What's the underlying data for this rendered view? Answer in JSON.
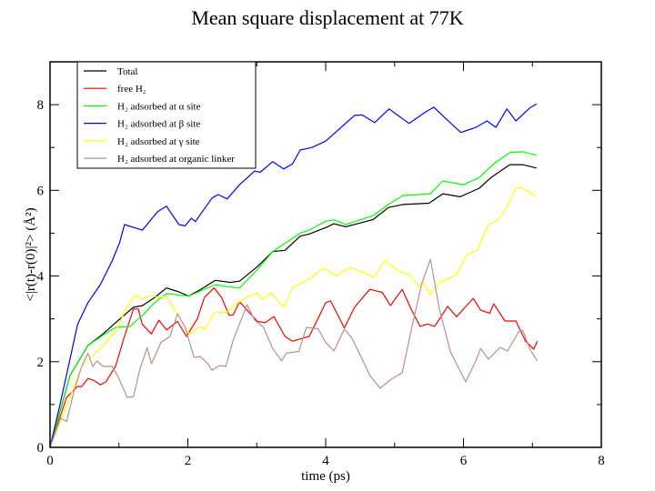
{
  "chart_data": {
    "type": "line",
    "title": "Mean square displacement at 77K",
    "xlabel": "time (ps)",
    "ylabel": "<|r(t)-r(0)|²> (Å²)",
    "xlim": [
      0,
      8
    ],
    "ylim": [
      0,
      9
    ],
    "xticks": [
      0,
      2,
      4,
      6,
      8
    ],
    "yticks": [
      0,
      2,
      4,
      6,
      8
    ],
    "xtick_labels": [
      "0",
      "2",
      "4",
      "6",
      "8"
    ],
    "ytick_labels": [
      "0",
      "2",
      "4",
      "6",
      "8"
    ],
    "grid": false,
    "legend_position": "top-left",
    "series": [
      {
        "name": "Total",
        "color": "#000000",
        "points": [
          [
            0,
            0
          ],
          [
            0.29,
            1.68
          ],
          [
            0.55,
            2.38
          ],
          [
            0.77,
            2.65
          ],
          [
            0.95,
            2.91
          ],
          [
            1.21,
            3.27
          ],
          [
            1.34,
            3.31
          ],
          [
            1.52,
            3.5
          ],
          [
            1.69,
            3.72
          ],
          [
            1.87,
            3.63
          ],
          [
            2.01,
            3.53
          ],
          [
            2.18,
            3.68
          ],
          [
            2.4,
            3.9
          ],
          [
            2.62,
            3.85
          ],
          [
            2.75,
            3.88
          ],
          [
            3.01,
            4.22
          ],
          [
            3.23,
            4.57
          ],
          [
            3.41,
            4.6
          ],
          [
            3.63,
            4.93
          ],
          [
            3.76,
            4.98
          ],
          [
            4.0,
            5.13
          ],
          [
            4.12,
            5.22
          ],
          [
            4.29,
            5.15
          ],
          [
            4.69,
            5.32
          ],
          [
            4.91,
            5.6
          ],
          [
            5.12,
            5.67
          ],
          [
            5.5,
            5.7
          ],
          [
            5.7,
            5.92
          ],
          [
            5.95,
            5.85
          ],
          [
            6.23,
            6.05
          ],
          [
            6.4,
            6.3
          ],
          [
            6.67,
            6.6
          ],
          [
            6.86,
            6.6
          ],
          [
            7.06,
            6.52
          ]
        ]
      },
      {
        "name": "free H₂",
        "color": "#ff0000",
        "points": [
          [
            0,
            0
          ],
          [
            0.24,
            1.17
          ],
          [
            0.4,
            1.42
          ],
          [
            0.46,
            1.42
          ],
          [
            0.55,
            1.61
          ],
          [
            0.64,
            1.56
          ],
          [
            0.73,
            1.46
          ],
          [
            0.81,
            1.53
          ],
          [
            0.95,
            1.89
          ],
          [
            1.08,
            2.59
          ],
          [
            1.21,
            3.23
          ],
          [
            1.28,
            3.23
          ],
          [
            1.34,
            2.87
          ],
          [
            1.47,
            2.65
          ],
          [
            1.58,
            2.97
          ],
          [
            1.69,
            2.74
          ],
          [
            1.85,
            2.94
          ],
          [
            1.98,
            2.59
          ],
          [
            2.14,
            3.01
          ],
          [
            2.24,
            3.5
          ],
          [
            2.38,
            3.72
          ],
          [
            2.49,
            3.5
          ],
          [
            2.6,
            3.08
          ],
          [
            2.66,
            3.1
          ],
          [
            2.75,
            3.4
          ],
          [
            2.88,
            3.17
          ],
          [
            3.01,
            2.94
          ],
          [
            3.12,
            2.91
          ],
          [
            3.25,
            3.05
          ],
          [
            3.41,
            2.59
          ],
          [
            3.52,
            2.48
          ],
          [
            3.67,
            2.55
          ],
          [
            3.76,
            2.59
          ],
          [
            3.89,
            3.01
          ],
          [
            4.0,
            3.38
          ],
          [
            4.07,
            3.42
          ],
          [
            4.18,
            3.08
          ],
          [
            4.27,
            2.79
          ],
          [
            4.42,
            3.27
          ],
          [
            4.64,
            3.69
          ],
          [
            4.82,
            3.62
          ],
          [
            4.94,
            3.31
          ],
          [
            5.11,
            3.69
          ],
          [
            5.24,
            3.23
          ],
          [
            5.37,
            2.82
          ],
          [
            5.48,
            2.88
          ],
          [
            5.58,
            2.82
          ],
          [
            5.77,
            3.29
          ],
          [
            5.9,
            3.05
          ],
          [
            6.14,
            3.48
          ],
          [
            6.25,
            3.2
          ],
          [
            6.38,
            3.13
          ],
          [
            6.44,
            3.35
          ],
          [
            6.6,
            2.95
          ],
          [
            6.76,
            2.95
          ],
          [
            6.9,
            2.48
          ],
          [
            7.02,
            2.29
          ],
          [
            7.07,
            2.48
          ]
        ]
      },
      {
        "name": "H₂ adsorbed at α site",
        "color": "#00ff00",
        "points": [
          [
            0,
            0
          ],
          [
            0.29,
            1.68
          ],
          [
            0.55,
            2.38
          ],
          [
            0.77,
            2.62
          ],
          [
            0.95,
            2.8
          ],
          [
            1.16,
            2.82
          ],
          [
            1.34,
            3.08
          ],
          [
            1.52,
            3.38
          ],
          [
            1.69,
            3.59
          ],
          [
            2.01,
            3.53
          ],
          [
            2.4,
            3.8
          ],
          [
            2.57,
            3.75
          ],
          [
            2.75,
            3.72
          ],
          [
            3.01,
            4.15
          ],
          [
            3.23,
            4.57
          ],
          [
            3.63,
            5.0
          ],
          [
            3.76,
            5.07
          ],
          [
            4.0,
            5.28
          ],
          [
            4.12,
            5.31
          ],
          [
            4.29,
            5.2
          ],
          [
            4.69,
            5.41
          ],
          [
            4.91,
            5.67
          ],
          [
            5.12,
            5.88
          ],
          [
            5.52,
            5.92
          ],
          [
            5.7,
            6.22
          ],
          [
            6.0,
            6.13
          ],
          [
            6.23,
            6.3
          ],
          [
            6.44,
            6.62
          ],
          [
            6.67,
            6.88
          ],
          [
            6.86,
            6.9
          ],
          [
            7.06,
            6.82
          ]
        ]
      },
      {
        "name": "H₂ adsorbed at β site",
        "color": "#0000ff",
        "points": [
          [
            0,
            0
          ],
          [
            0.15,
            1.04
          ],
          [
            0.4,
            2.87
          ],
          [
            0.55,
            3.38
          ],
          [
            0.73,
            3.8
          ],
          [
            0.9,
            4.35
          ],
          [
            1.01,
            4.78
          ],
          [
            1.08,
            5.2
          ],
          [
            1.34,
            5.07
          ],
          [
            1.56,
            5.5
          ],
          [
            1.69,
            5.63
          ],
          [
            1.87,
            5.2
          ],
          [
            1.96,
            5.17
          ],
          [
            2.05,
            5.35
          ],
          [
            2.11,
            5.27
          ],
          [
            2.35,
            5.82
          ],
          [
            2.44,
            5.9
          ],
          [
            2.57,
            5.8
          ],
          [
            2.75,
            6.13
          ],
          [
            2.97,
            6.45
          ],
          [
            3.05,
            6.42
          ],
          [
            3.23,
            6.67
          ],
          [
            3.39,
            6.5
          ],
          [
            3.52,
            6.62
          ],
          [
            3.63,
            6.94
          ],
          [
            3.8,
            7.0
          ],
          [
            4.0,
            7.15
          ],
          [
            4.42,
            7.75
          ],
          [
            4.53,
            7.76
          ],
          [
            4.71,
            7.58
          ],
          [
            4.92,
            7.9
          ],
          [
            5.21,
            7.56
          ],
          [
            5.45,
            7.83
          ],
          [
            5.57,
            7.94
          ],
          [
            5.78,
            7.62
          ],
          [
            5.96,
            7.35
          ],
          [
            6.18,
            7.47
          ],
          [
            6.34,
            7.62
          ],
          [
            6.47,
            7.47
          ],
          [
            6.63,
            7.9
          ],
          [
            6.76,
            7.62
          ],
          [
            6.96,
            7.92
          ],
          [
            7.06,
            8.02
          ]
        ]
      },
      {
        "name": "H₂ adsorbed at γ site",
        "color": "#ffff00",
        "points": [
          [
            0,
            0
          ],
          [
            0.29,
            1.17
          ],
          [
            0.46,
            1.89
          ],
          [
            0.73,
            2.31
          ],
          [
            0.95,
            2.7
          ],
          [
            1.12,
            3.29
          ],
          [
            1.23,
            3.55
          ],
          [
            1.34,
            3.47
          ],
          [
            1.47,
            3.55
          ],
          [
            1.56,
            3.5
          ],
          [
            1.69,
            3.53
          ],
          [
            1.91,
            2.94
          ],
          [
            2.02,
            2.65
          ],
          [
            2.18,
            2.82
          ],
          [
            2.24,
            2.75
          ],
          [
            2.4,
            3.17
          ],
          [
            2.55,
            3.13
          ],
          [
            2.7,
            3.35
          ],
          [
            2.88,
            3.53
          ],
          [
            3.01,
            3.59
          ],
          [
            3.08,
            3.45
          ],
          [
            3.21,
            3.6
          ],
          [
            3.39,
            3.27
          ],
          [
            3.52,
            3.72
          ],
          [
            3.76,
            3.93
          ],
          [
            3.96,
            4.18
          ],
          [
            4.16,
            4.01
          ],
          [
            4.36,
            4.2
          ],
          [
            4.55,
            4.08
          ],
          [
            4.7,
            3.97
          ],
          [
            4.86,
            4.36
          ],
          [
            5.08,
            4.09
          ],
          [
            5.21,
            4.05
          ],
          [
            5.35,
            3.76
          ],
          [
            5.42,
            3.83
          ],
          [
            5.52,
            3.56
          ],
          [
            5.65,
            3.86
          ],
          [
            5.78,
            3.93
          ],
          [
            5.91,
            4.05
          ],
          [
            6.05,
            4.5
          ],
          [
            6.2,
            4.6
          ],
          [
            6.36,
            5.2
          ],
          [
            6.49,
            5.29
          ],
          [
            6.63,
            5.6
          ],
          [
            6.76,
            6.05
          ],
          [
            6.84,
            6.07
          ],
          [
            7.06,
            5.85
          ]
        ]
      },
      {
        "name": "H₂ adsorbed at organic linker",
        "color": "#bc8f8f",
        "points": [
          [
            0,
            0
          ],
          [
            0.15,
            0.68
          ],
          [
            0.24,
            0.6
          ],
          [
            0.35,
            1.32
          ],
          [
            0.46,
            1.89
          ],
          [
            0.55,
            2.2
          ],
          [
            0.62,
            1.89
          ],
          [
            0.68,
            2.02
          ],
          [
            0.77,
            1.89
          ],
          [
            0.9,
            1.89
          ],
          [
            0.99,
            1.64
          ],
          [
            1.12,
            1.17
          ],
          [
            1.21,
            1.18
          ],
          [
            1.3,
            1.8
          ],
          [
            1.41,
            2.33
          ],
          [
            1.47,
            1.95
          ],
          [
            1.61,
            2.45
          ],
          [
            1.74,
            2.59
          ],
          [
            1.85,
            3.12
          ],
          [
            1.96,
            2.8
          ],
          [
            2.09,
            2.1
          ],
          [
            2.18,
            2.12
          ],
          [
            2.29,
            1.95
          ],
          [
            2.35,
            1.8
          ],
          [
            2.46,
            1.91
          ],
          [
            2.55,
            1.89
          ],
          [
            2.66,
            2.52
          ],
          [
            2.8,
            3.08
          ],
          [
            2.86,
            3.33
          ],
          [
            2.97,
            2.97
          ],
          [
            3.1,
            2.8
          ],
          [
            3.23,
            2.31
          ],
          [
            3.36,
            2.02
          ],
          [
            3.43,
            2.2
          ],
          [
            3.61,
            2.24
          ],
          [
            3.72,
            2.8
          ],
          [
            3.89,
            2.77
          ],
          [
            4.0,
            2.45
          ],
          [
            4.12,
            2.25
          ],
          [
            4.27,
            2.76
          ],
          [
            4.38,
            2.55
          ],
          [
            4.53,
            2.06
          ],
          [
            4.64,
            1.68
          ],
          [
            4.79,
            1.38
          ],
          [
            4.95,
            1.59
          ],
          [
            5.11,
            1.74
          ],
          [
            5.25,
            2.8
          ],
          [
            5.39,
            3.8
          ],
          [
            5.52,
            4.39
          ],
          [
            5.65,
            3.23
          ],
          [
            5.81,
            2.23
          ],
          [
            6.03,
            1.53
          ],
          [
            6.18,
            2.02
          ],
          [
            6.25,
            2.31
          ],
          [
            6.36,
            2.06
          ],
          [
            6.53,
            2.33
          ],
          [
            6.64,
            2.25
          ],
          [
            6.8,
            2.7
          ],
          [
            6.86,
            2.73
          ],
          [
            6.97,
            2.27
          ],
          [
            7.07,
            2.02
          ]
        ]
      }
    ]
  }
}
